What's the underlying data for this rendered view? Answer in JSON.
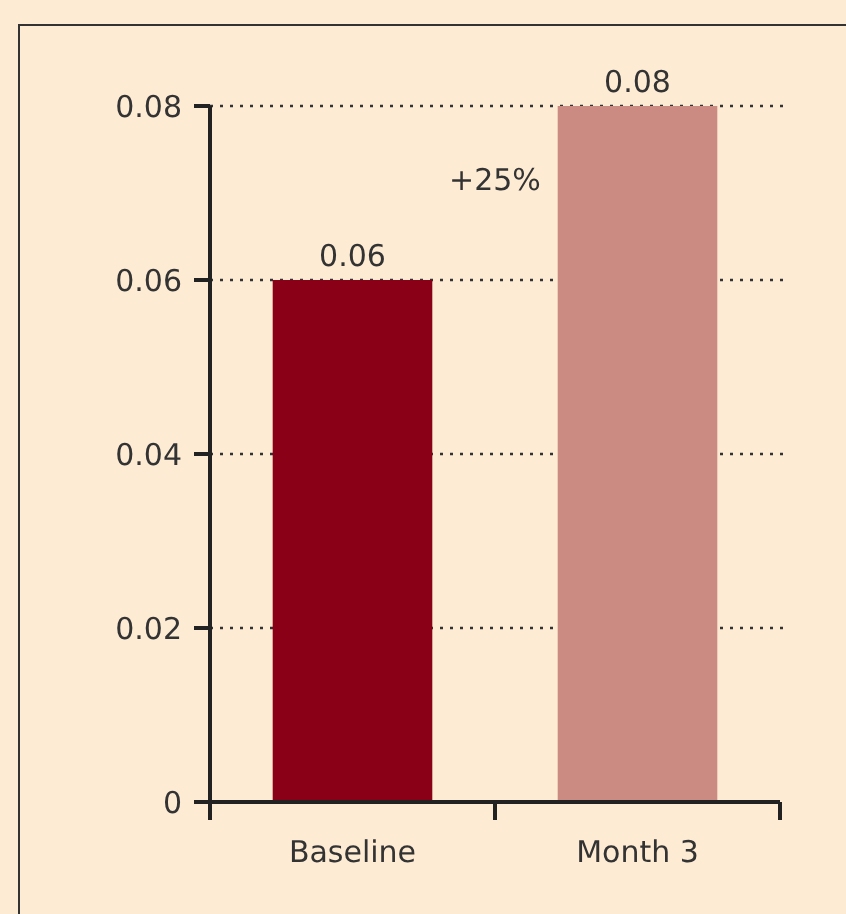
{
  "chart_data": {
    "type": "bar",
    "categories": [
      "Baseline",
      "Month 3"
    ],
    "values": [
      0.06,
      0.08
    ],
    "colors": [
      "#8a0016",
      "#cc8b82"
    ],
    "ylim": [
      0,
      0.08
    ],
    "yticks": [
      0,
      0.02,
      0.04,
      0.06,
      0.08
    ],
    "grid": "y",
    "data_labels": true,
    "annotations": [
      "+25%"
    ]
  }
}
